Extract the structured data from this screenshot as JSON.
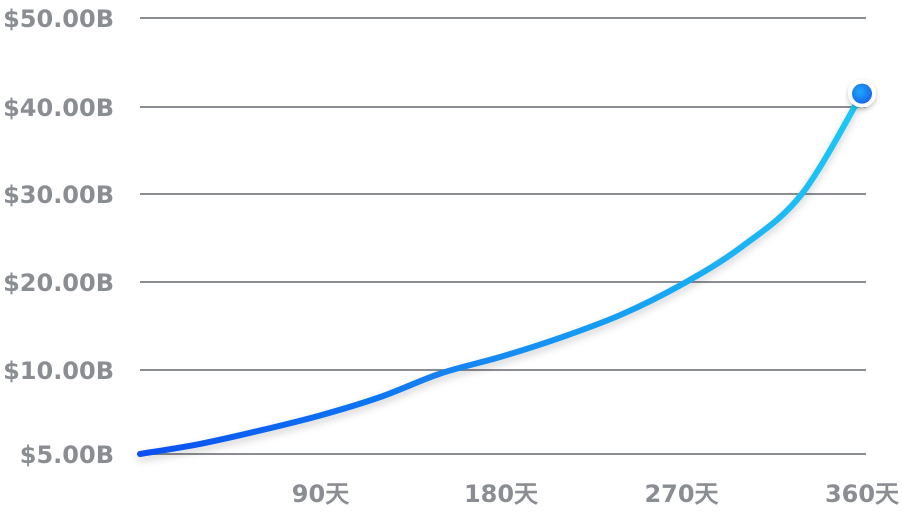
{
  "chart_data": {
    "type": "line",
    "title": "",
    "xlabel": "",
    "ylabel": "",
    "grid": true,
    "legend": "none",
    "y_ticks": [
      {
        "value": 5,
        "label": "$5.00B"
      },
      {
        "value": 10,
        "label": "$10.00B"
      },
      {
        "value": 20,
        "label": "$20.00B"
      },
      {
        "value": 30,
        "label": "$30.00B"
      },
      {
        "value": 40,
        "label": "$40.00B"
      },
      {
        "value": 50,
        "label": "$50.00B"
      }
    ],
    "x_ticks": [
      {
        "value": 90,
        "label": "90天"
      },
      {
        "value": 180,
        "label": "180天"
      },
      {
        "value": 270,
        "label": "270天"
      },
      {
        "value": 360,
        "label": "360天"
      }
    ],
    "xlim": [
      0,
      360
    ],
    "series": [
      {
        "x": [
          0,
          30,
          60,
          90,
          120,
          150,
          180,
          210,
          240,
          270,
          300,
          330,
          360
        ],
        "values": [
          5.0,
          5.6,
          6.4,
          7.3,
          8.4,
          9.8,
          11.5,
          13.7,
          16.3,
          19.7,
          24.0,
          30.0,
          41.5
        ]
      }
    ],
    "end_marker": true,
    "colors": {
      "line_start": "#0a4ff0",
      "line_end": "#1ec8f5",
      "marker": "#1b86f5",
      "grid": "#8a8d92",
      "label": "#8a8d92"
    }
  }
}
